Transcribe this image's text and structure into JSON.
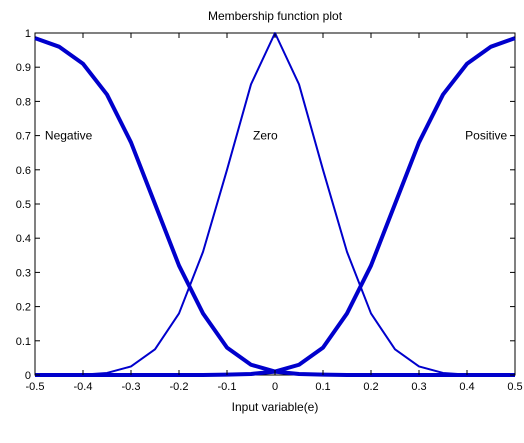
{
  "chart_data": {
    "type": "line",
    "title": "Membership function plot",
    "xlabel": "Input variable(e)",
    "ylabel": "",
    "xlim": [
      -0.5,
      0.5
    ],
    "ylim": [
      0,
      1
    ],
    "xticks": [
      "-0.5",
      "-0.4",
      "-0.3",
      "-0.2",
      "-0.1",
      "0",
      "0.1",
      "0.2",
      "0.3",
      "0.4",
      "0.5"
    ],
    "yticks": [
      "0",
      "0.1",
      "0.2",
      "0.3",
      "0.4",
      "0.5",
      "0.6",
      "0.7",
      "0.8",
      "0.9",
      "1"
    ],
    "grid": false,
    "line_color": "#0000cc",
    "series": [
      {
        "x": [
          -0.5,
          -0.45,
          -0.4,
          -0.35,
          -0.3,
          -0.25,
          -0.2,
          -0.15,
          -0.1,
          -0.05,
          0,
          0.05,
          0.1,
          0.15,
          0.2,
          0.25,
          0.3,
          0.35,
          0.4,
          0.45,
          0.5
        ],
        "y": [
          0.985,
          0.96,
          0.91,
          0.82,
          0.68,
          0.5,
          0.32,
          0.18,
          0.08,
          0.03,
          0.01,
          0.003,
          0.001,
          0,
          0,
          0,
          0,
          0,
          0,
          0,
          0
        ]
      },
      {
        "x": [
          -0.5,
          -0.45,
          -0.4,
          -0.35,
          -0.3,
          -0.25,
          -0.2,
          -0.15,
          -0.1,
          -0.05,
          0,
          0.05,
          0.1,
          0.15,
          0.2,
          0.25,
          0.3,
          0.35,
          0.4,
          0.45,
          0.5
        ],
        "y": [
          0,
          0,
          0.001,
          0.006,
          0.025,
          0.075,
          0.18,
          0.36,
          0.6,
          0.85,
          1,
          0.85,
          0.6,
          0.36,
          0.18,
          0.075,
          0.025,
          0.006,
          0.001,
          0,
          0
        ]
      },
      {
        "x": [
          -0.5,
          -0.45,
          -0.4,
          -0.35,
          -0.3,
          -0.25,
          -0.2,
          -0.15,
          -0.1,
          -0.05,
          0,
          0.05,
          0.1,
          0.15,
          0.2,
          0.25,
          0.3,
          0.35,
          0.4,
          0.45,
          0.5
        ],
        "y": [
          0,
          0,
          0,
          0,
          0,
          0,
          0,
          0,
          0.001,
          0.003,
          0.01,
          0.03,
          0.08,
          0.18,
          0.32,
          0.5,
          0.68,
          0.82,
          0.91,
          0.96,
          0.985
        ]
      }
    ],
    "annotations": [
      {
        "text": "Negative",
        "x": -0.43,
        "y": 0.7
      },
      {
        "text": "Zero",
        "x": -0.02,
        "y": 0.7
      },
      {
        "text": "Positive",
        "x": 0.44,
        "y": 0.7
      }
    ]
  }
}
